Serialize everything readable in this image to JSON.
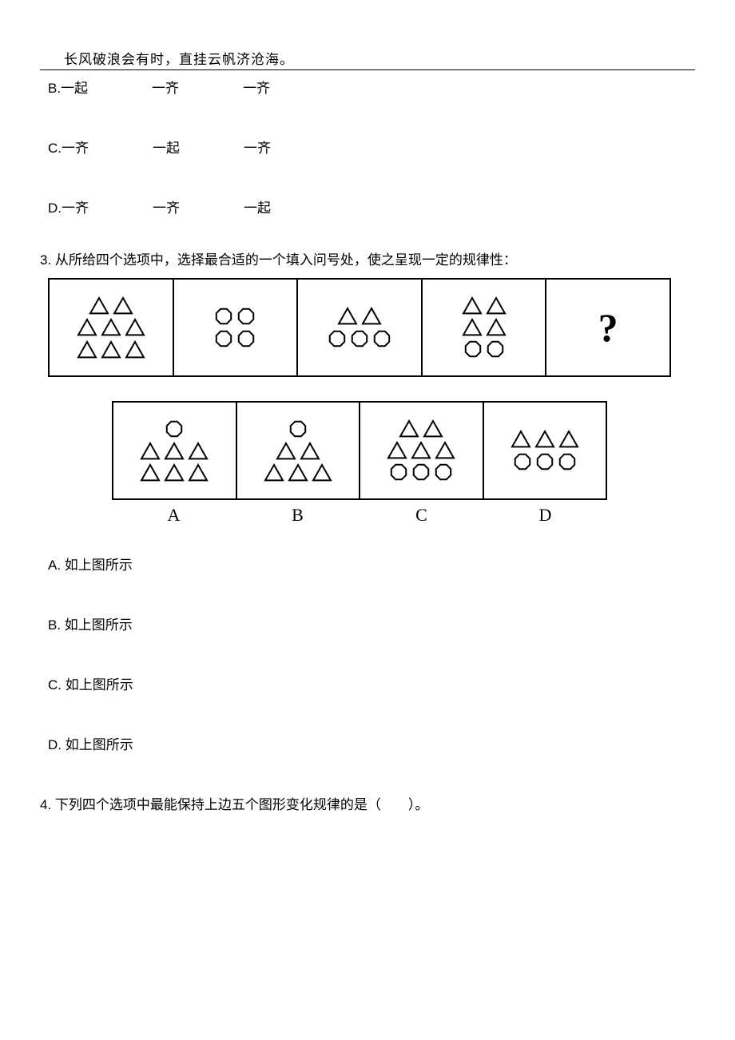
{
  "header": {
    "quote": "长风破浪会有时，直挂云帆济沧海。"
  },
  "q2_options": {
    "B": [
      "一起",
      "一齐",
      "一齐"
    ],
    "C": [
      "一齐",
      "一起",
      "一齐"
    ],
    "D": [
      "一齐",
      "一齐",
      "一起"
    ]
  },
  "q3": {
    "text": "3. 从所给四个选项中，选择最合适的一个填入问号处，使之呈现一定的规律性：",
    "sequence": [
      {
        "rows": [
          [
            "tri",
            "tri"
          ],
          [
            "tri",
            "tri",
            "tri"
          ],
          [
            "tri",
            "tri",
            "tri"
          ]
        ]
      },
      {
        "rows": [
          [
            "oct",
            "oct"
          ],
          [
            "oct",
            "oct"
          ]
        ]
      },
      {
        "rows": [
          [
            "tri",
            "tri"
          ],
          [
            "oct",
            "oct",
            "oct"
          ]
        ]
      },
      {
        "rows": [
          [
            "tri",
            "tri"
          ],
          [
            "tri",
            "tri"
          ],
          [
            "oct",
            "oct"
          ]
        ]
      },
      {
        "rows": [
          [
            "qmark"
          ]
        ]
      }
    ],
    "answers": [
      {
        "label": "A",
        "rows": [
          [
            "oct"
          ],
          [
            "tri",
            "tri",
            "tri"
          ],
          [
            "tri",
            "tri",
            "tri"
          ]
        ]
      },
      {
        "label": "B",
        "rows": [
          [
            "oct"
          ],
          [
            "tri",
            "tri"
          ],
          [
            "tri",
            "tri",
            "tri"
          ]
        ]
      },
      {
        "label": "C",
        "rows": [
          [
            "tri",
            "tri"
          ],
          [
            "tri",
            "tri",
            "tri"
          ],
          [
            "oct",
            "oct",
            "oct"
          ]
        ]
      },
      {
        "label": "D",
        "rows": [
          [
            "tri",
            "tri",
            "tri"
          ],
          [
            "oct",
            "oct",
            "oct"
          ]
        ]
      }
    ],
    "choice_text": "如上图所示",
    "choice_labels": [
      "A",
      "B",
      "C",
      "D"
    ],
    "shape_style": {
      "triangle_size": 26,
      "octagon_size": 24,
      "small_octagon_size": 18,
      "stroke_color": "#000000",
      "stroke_width": 2,
      "fill": "none"
    }
  },
  "q4": {
    "text": "4. 下列四个选项中最能保持上边五个图形变化规律的是（　　）。"
  }
}
